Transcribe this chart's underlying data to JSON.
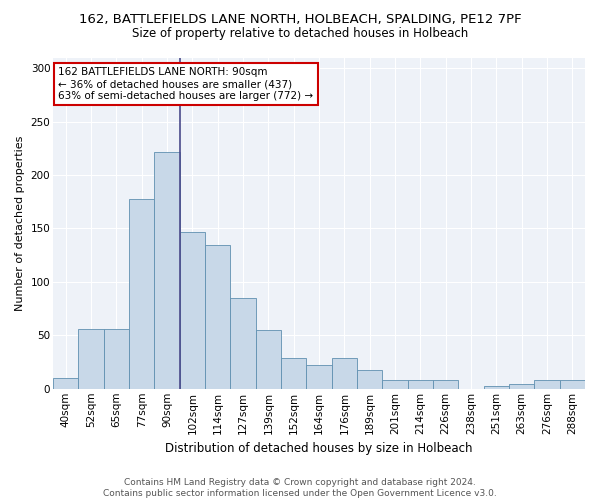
{
  "title1": "162, BATTLEFIELDS LANE NORTH, HOLBEACH, SPALDING, PE12 7PF",
  "title2": "Size of property relative to detached houses in Holbeach",
  "xlabel": "Distribution of detached houses by size in Holbeach",
  "ylabel": "Number of detached properties",
  "footnote1": "Contains HM Land Registry data © Crown copyright and database right 2024.",
  "footnote2": "Contains public sector information licensed under the Open Government Licence v3.0.",
  "annotation_line1": "162 BATTLEFIELDS LANE NORTH: 90sqm",
  "annotation_line2": "← 36% of detached houses are smaller (437)",
  "annotation_line3": "63% of semi-detached houses are larger (772) →",
  "bar_labels": [
    "40sqm",
    "52sqm",
    "65sqm",
    "77sqm",
    "90sqm",
    "102sqm",
    "114sqm",
    "127sqm",
    "139sqm",
    "152sqm",
    "164sqm",
    "176sqm",
    "189sqm",
    "201sqm",
    "214sqm",
    "226sqm",
    "238sqm",
    "251sqm",
    "263sqm",
    "276sqm",
    "288sqm"
  ],
  "bar_values": [
    10,
    56,
    56,
    178,
    222,
    147,
    135,
    85,
    55,
    29,
    22,
    29,
    18,
    8,
    8,
    8,
    0,
    3,
    4,
    8,
    8
  ],
  "bar_color": "#c8d8e8",
  "bar_edge_color": "#6090b0",
  "vline_x": 4.5,
  "vline_color": "#4a4a8a",
  "ylim": [
    0,
    310
  ],
  "yticks": [
    0,
    50,
    100,
    150,
    200,
    250,
    300
  ],
  "background_color": "#eef2f8",
  "annotation_box_edge": "#cc0000",
  "annotation_box_face": "#ffffff",
  "title1_fontsize": 9.5,
  "title2_fontsize": 8.5,
  "ylabel_fontsize": 8.0,
  "xlabel_fontsize": 8.5,
  "tick_fontsize": 7.5,
  "footnote_fontsize": 6.5
}
